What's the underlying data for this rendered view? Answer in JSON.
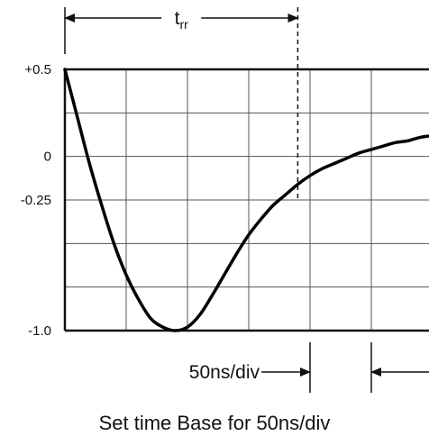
{
  "chart_data": {
    "type": "line",
    "title": "",
    "caption": "Set time Base for 50ns/div",
    "xlabel": "",
    "ylabel": "",
    "ylim": [
      -1.0,
      0.5
    ],
    "xlim": [
      0,
      6
    ],
    "x_division_label": "50ns/div",
    "grid": true,
    "yticks": [
      {
        "value": 0.5,
        "label": "+0.5"
      },
      {
        "value": 0,
        "label": "0"
      },
      {
        "value": -0.25,
        "label": "-0.25"
      },
      {
        "value": -1.0,
        "label": "-1.0"
      }
    ],
    "trr": {
      "label_main": "t",
      "label_sub": "rr",
      "start_div": 0,
      "end_div": 3.8
    },
    "series": [
      {
        "x": [
          0,
          0.2,
          0.4,
          0.6,
          0.8,
          1.0,
          1.2,
          1.4,
          1.6,
          1.8,
          2.0,
          2.2,
          2.4,
          2.6,
          2.8,
          3.0,
          3.2,
          3.4,
          3.6,
          3.8,
          4.0,
          4.2,
          4.4,
          4.6,
          4.8,
          5.0,
          5.2,
          5.4,
          5.6,
          5.8,
          6.0
        ],
        "y": [
          0.5,
          0.23,
          -0.04,
          -0.28,
          -0.5,
          -0.68,
          -0.82,
          -0.93,
          -0.98,
          -1.0,
          -0.98,
          -0.91,
          -0.8,
          -0.68,
          -0.56,
          -0.45,
          -0.36,
          -0.28,
          -0.22,
          -0.16,
          -0.11,
          -0.07,
          -0.04,
          -0.01,
          0.02,
          0.04,
          0.06,
          0.08,
          0.09,
          0.11,
          0.12
        ]
      }
    ]
  }
}
